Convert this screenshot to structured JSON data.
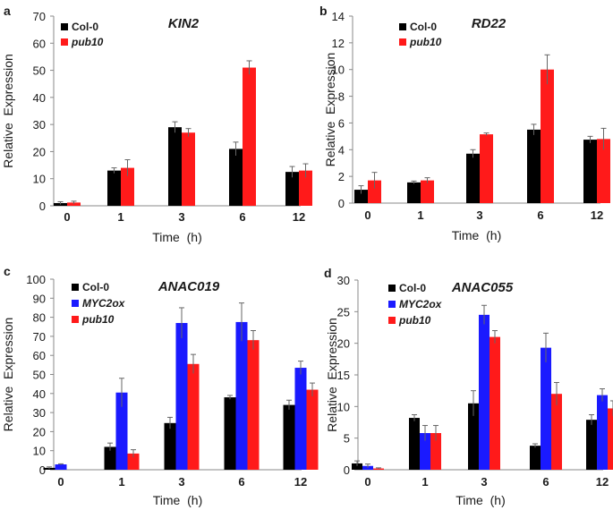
{
  "colors": {
    "col0": "#000000",
    "myc2ox": "#1a1aff",
    "pub10": "#ff1a1a",
    "errorbar": "#666666",
    "axis": "#888888",
    "text": "#1a1a1a"
  },
  "chart_data": [
    {
      "type": "bar",
      "panel_letter": "a",
      "title": "KIN2",
      "xlabel": "Time  (h)",
      "ylabel": "Relative  Expression",
      "categories": [
        "0",
        "1",
        "3",
        "6",
        "12"
      ],
      "ylim": [
        0,
        70
      ],
      "yticks": [
        0,
        10,
        20,
        30,
        40,
        50,
        60,
        70
      ],
      "series": [
        {
          "name": "Col-0",
          "color_key": "col0",
          "values": [
            1.0,
            13.0,
            29.0,
            21.0,
            12.5
          ],
          "errors": [
            0.5,
            1.0,
            2.0,
            2.5,
            2.0
          ]
        },
        {
          "name": "pub10",
          "color_key": "pub10",
          "values": [
            1.2,
            14.0,
            27.0,
            51.0,
            13.0
          ],
          "errors": [
            0.5,
            3.0,
            1.5,
            2.5,
            2.5
          ]
        }
      ],
      "legend_position": "top-left"
    },
    {
      "type": "bar",
      "panel_letter": "b",
      "title": "RD22",
      "xlabel": "Time  (h)",
      "ylabel": "Relative  Expression",
      "categories": [
        "0",
        "1",
        "3",
        "6",
        "12"
      ],
      "ylim": [
        0,
        14
      ],
      "yticks": [
        0,
        2,
        4,
        6,
        8,
        10,
        12,
        14
      ],
      "series": [
        {
          "name": "Col-0",
          "color_key": "col0",
          "values": [
            1.0,
            1.55,
            3.7,
            5.5,
            4.75
          ],
          "errors": [
            0.3,
            0.1,
            0.3,
            0.4,
            0.25
          ]
        },
        {
          "name": "pub10",
          "color_key": "pub10",
          "values": [
            1.7,
            1.7,
            5.15,
            10.0,
            4.8
          ],
          "errors": [
            0.6,
            0.2,
            0.1,
            1.1,
            0.8
          ]
        }
      ],
      "legend_position": "top-left"
    },
    {
      "type": "bar",
      "panel_letter": "c",
      "title": "ANAC019",
      "xlabel": "Time  (h)",
      "ylabel": "Relative  Expression",
      "categories": [
        "0",
        "1",
        "3",
        "6",
        "12"
      ],
      "ylim": [
        0,
        100
      ],
      "yticks": [
        0,
        10,
        20,
        30,
        40,
        50,
        60,
        70,
        80,
        90,
        100
      ],
      "series": [
        {
          "name": "Col-0",
          "color_key": "col0",
          "values": [
            1.0,
            12.0,
            24.5,
            38.0,
            34.0
          ],
          "errors": [
            0.5,
            2.0,
            3.0,
            1.0,
            2.5
          ]
        },
        {
          "name": "MYC2ox",
          "color_key": "myc2ox",
          "values": [
            2.8,
            40.5,
            77.0,
            77.5,
            53.5
          ],
          "errors": [
            0.3,
            7.5,
            8.0,
            10.0,
            3.5
          ]
        },
        {
          "name": "pub10",
          "color_key": "pub10",
          "values": [
            0.0,
            8.5,
            55.5,
            68.0,
            42.0
          ],
          "errors": [
            0.0,
            2.0,
            5.0,
            5.0,
            3.5
          ]
        }
      ],
      "legend_position": "top-left"
    },
    {
      "type": "bar",
      "panel_letter": "d",
      "title": "ANAC055",
      "xlabel": "Time  (h)",
      "ylabel": "Relative  Expression",
      "categories": [
        "0",
        "1",
        "3",
        "6",
        "12"
      ],
      "ylim": [
        0,
        30
      ],
      "yticks": [
        0,
        5,
        10,
        15,
        20,
        25,
        30
      ],
      "series": [
        {
          "name": "Col-0",
          "color_key": "col0",
          "values": [
            1.0,
            8.2,
            10.5,
            3.8,
            7.9
          ],
          "errors": [
            0.4,
            0.5,
            2.0,
            0.3,
            0.8
          ]
        },
        {
          "name": "MYC2ox",
          "color_key": "myc2ox",
          "values": [
            0.6,
            5.8,
            24.5,
            19.3,
            11.8
          ],
          "errors": [
            0.3,
            1.2,
            1.5,
            2.3,
            1.0
          ]
        },
        {
          "name": "pub10",
          "color_key": "pub10",
          "values": [
            0.2,
            5.8,
            21.0,
            12.0,
            9.7
          ],
          "errors": [
            0.1,
            1.2,
            1.0,
            1.8,
            1.2
          ]
        }
      ],
      "legend_position": "top-left"
    }
  ]
}
